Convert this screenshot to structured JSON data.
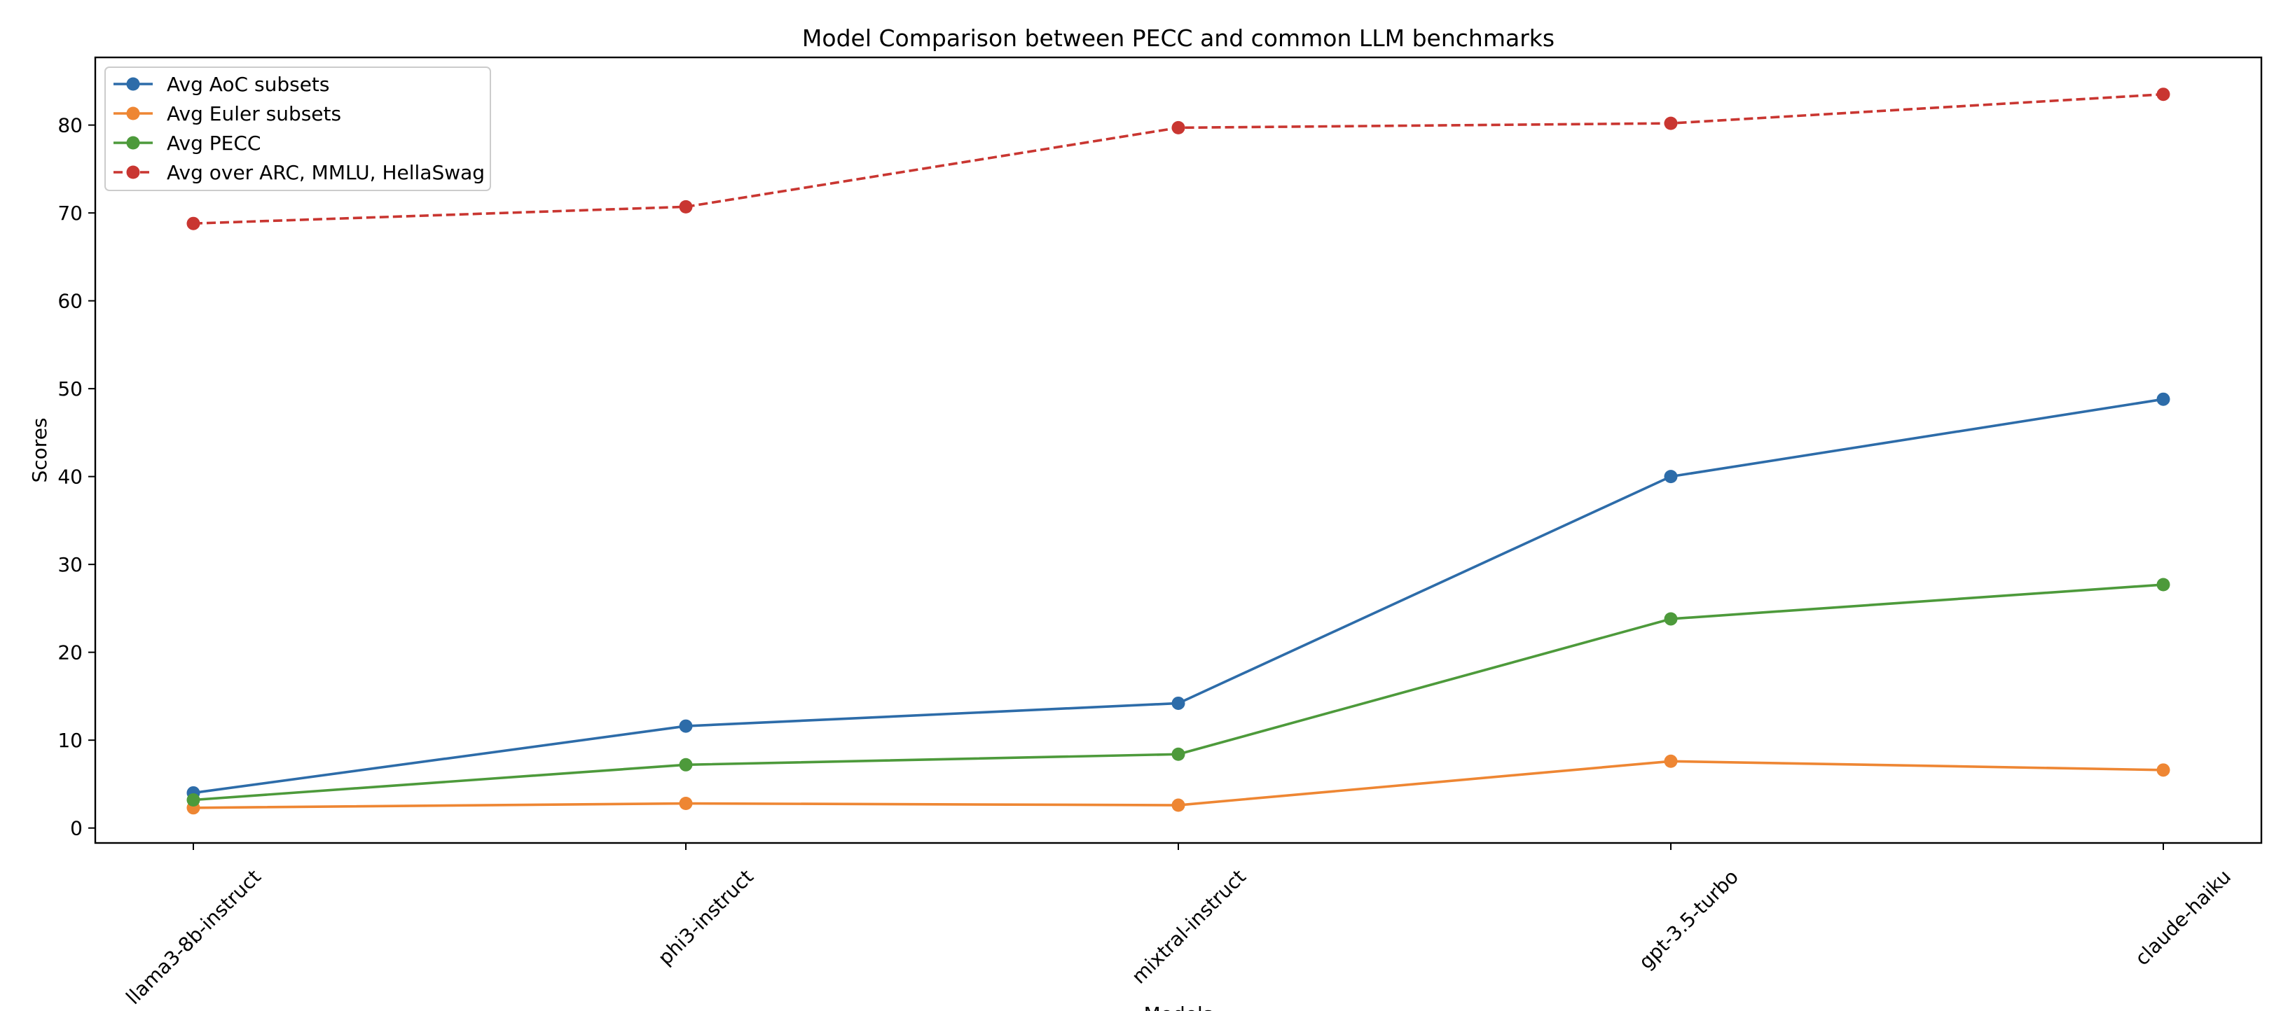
{
  "chart_data": {
    "type": "line",
    "title": "Model Comparison between PECC and common LLM benchmarks",
    "xlabel": "Models",
    "ylabel": "Scores",
    "categories": [
      "llama3-8b-instruct",
      "phi3-instruct",
      "mixtral-instruct",
      "gpt-3.5-turbo",
      "claude-haiku"
    ],
    "ylim": [
      -1.7,
      87.7
    ],
    "yticks": [
      0,
      10,
      20,
      30,
      40,
      50,
      60,
      70,
      80
    ],
    "grid": false,
    "legend_position": "upper-left",
    "series": [
      {
        "name": "Avg AoC subsets",
        "color": "#2d6ca9",
        "dash": "solid",
        "values": [
          4.0,
          11.6,
          14.2,
          40.0,
          48.8
        ]
      },
      {
        "name": "Avg Euler subsets",
        "color": "#ee8633",
        "dash": "solid",
        "values": [
          2.3,
          2.8,
          2.6,
          7.6,
          6.6
        ]
      },
      {
        "name": "Avg PECC",
        "color": "#4d9a3b",
        "dash": "solid",
        "values": [
          3.2,
          7.2,
          8.4,
          23.8,
          27.7
        ]
      },
      {
        "name": "Avg over ARC, MMLU, HellaSwag",
        "color": "#c93631",
        "dash": "dashed",
        "values": [
          68.8,
          70.7,
          79.7,
          80.2,
          83.5
        ]
      }
    ]
  }
}
